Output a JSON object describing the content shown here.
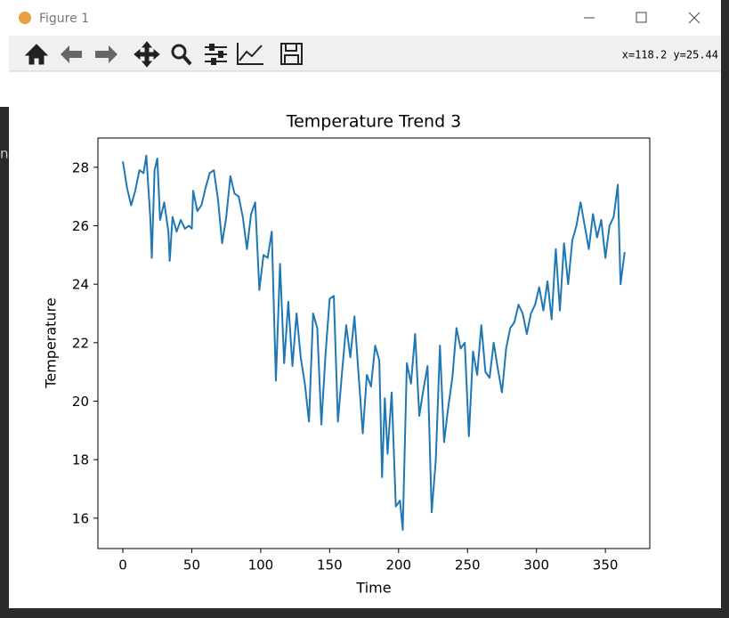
{
  "window": {
    "title": "Figure 1",
    "status": "x=118.2 y=25.44"
  },
  "chart_data": {
    "type": "line",
    "title": "Temperature Trend 3",
    "x_label": "Time",
    "y_label": "Temperature",
    "x": [
      0,
      3,
      6,
      9,
      12,
      15,
      17,
      20,
      21,
      23,
      25,
      27,
      30,
      33,
      34,
      36,
      39,
      42,
      45,
      48,
      50,
      51,
      54,
      57,
      60,
      63,
      66,
      69,
      72,
      75,
      78,
      81,
      84,
      87,
      90,
      93,
      96,
      99,
      102,
      105,
      108,
      111,
      114,
      117,
      120,
      123,
      126,
      129,
      132,
      135,
      138,
      141,
      144,
      147,
      150,
      153,
      156,
      159,
      162,
      165,
      168,
      171,
      174,
      177,
      180,
      183,
      186,
      188,
      190,
      192,
      195,
      198,
      201,
      203,
      206,
      209,
      212,
      215,
      218,
      221,
      224,
      227,
      230,
      233,
      236,
      239,
      242,
      245,
      248,
      251,
      254,
      257,
      260,
      263,
      266,
      269,
      272,
      275,
      278,
      281,
      284,
      287,
      290,
      293,
      296,
      299,
      302,
      305,
      308,
      311,
      314,
      317,
      320,
      323,
      326,
      329,
      332,
      335,
      338,
      341,
      344,
      347,
      350,
      353,
      356,
      359,
      361,
      364
    ],
    "series": [
      {
        "name": "Temperature",
        "color": "#1f77b4",
        "values": [
          28.2,
          27.3,
          26.7,
          27.2,
          27.9,
          27.8,
          28.4,
          26.2,
          24.9,
          27.9,
          28.3,
          26.2,
          26.8,
          25.8,
          24.8,
          26.3,
          25.8,
          26.2,
          25.9,
          26.0,
          25.9,
          27.2,
          26.5,
          26.7,
          27.3,
          27.8,
          27.9,
          26.9,
          25.4,
          26.3,
          27.7,
          27.1,
          27.0,
          26.3,
          25.2,
          26.4,
          26.8,
          23.8,
          25.0,
          24.9,
          25.8,
          20.7,
          24.7,
          21.3,
          23.4,
          21.2,
          23.0,
          21.5,
          20.6,
          19.3,
          23.0,
          22.5,
          19.2,
          21.6,
          23.5,
          23.6,
          19.3,
          21.0,
          22.6,
          21.5,
          22.9,
          20.9,
          18.9,
          20.9,
          20.5,
          21.9,
          21.4,
          17.4,
          20.1,
          18.2,
          20.3,
          16.4,
          16.6,
          15.6,
          21.3,
          20.6,
          22.3,
          19.5,
          20.4,
          21.2,
          16.2,
          18.0,
          21.9,
          18.6,
          19.8,
          20.8,
          22.5,
          21.8,
          22.0,
          18.8,
          21.7,
          20.9,
          22.6,
          21.0,
          20.8,
          22.0,
          21.1,
          20.3,
          21.8,
          22.5,
          22.7,
          23.3,
          23.0,
          22.3,
          23.0,
          23.3,
          23.9,
          23.1,
          24.1,
          22.8,
          25.2,
          23.1,
          25.4,
          24.0,
          25.5,
          26.0,
          26.8,
          26.0,
          25.2,
          26.4,
          25.6,
          26.2,
          24.9,
          26.0,
          26.3,
          27.4,
          24.0,
          25.1
        ]
      }
    ],
    "xlim": [
      -18.1,
      382.2
    ],
    "xticks": [
      0,
      50,
      100,
      150,
      200,
      250,
      300,
      350
    ],
    "ylim": [
      14.96,
      29.0
    ],
    "yticks": [
      16,
      18,
      20,
      22,
      24,
      26,
      28
    ]
  }
}
